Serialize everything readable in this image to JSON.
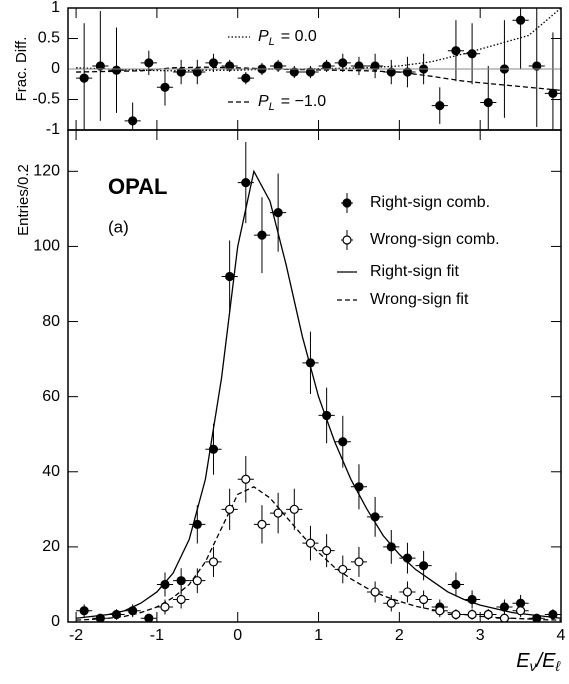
{
  "chart_data": [
    {
      "type": "errorbar",
      "ylabel": "Frac. Diff.",
      "ylim": [
        -1,
        1
      ],
      "yticks": [
        -1,
        -0.5,
        0,
        0.5,
        1
      ],
      "xlim": [
        -2.1,
        4
      ],
      "xticks": [
        -2,
        -1,
        0,
        1,
        2,
        3,
        4
      ],
      "color": "#000000",
      "x": [
        -1.9,
        -1.7,
        -1.5,
        -1.3,
        -1.1,
        -0.9,
        -0.7,
        -0.5,
        -0.3,
        -0.1,
        0.1,
        0.3,
        0.5,
        0.7,
        0.9,
        1.1,
        1.3,
        1.5,
        1.7,
        1.9,
        2.1,
        2.3,
        2.5,
        2.7,
        2.9,
        3.1,
        3.3,
        3.5,
        3.7,
        3.9
      ],
      "values": [
        -0.15,
        0.05,
        -0.02,
        -0.85,
        0.1,
        -0.3,
        -0.05,
        -0.05,
        0.1,
        0.05,
        -0.15,
        0.0,
        0.05,
        -0.05,
        -0.05,
        0.05,
        0.1,
        0.05,
        0.05,
        -0.05,
        -0.05,
        0.0,
        -0.6,
        0.3,
        0.25,
        -0.55,
        0.0,
        0.8,
        0.05,
        -0.4
      ],
      "errors": [
        0.9,
        0.9,
        0.7,
        0.3,
        0.2,
        0.3,
        0.2,
        0.2,
        0.15,
        0.1,
        0.1,
        0.1,
        0.1,
        0.1,
        0.1,
        0.1,
        0.15,
        0.15,
        0.2,
        0.2,
        0.25,
        0.25,
        0.3,
        0.5,
        0.5,
        0.6,
        0.8,
        0.8,
        1,
        1
      ],
      "curves": [
        {
          "symbol": "P",
          "sub": "L",
          "name": "=  0.0",
          "style": "dotted",
          "x": [
            -2,
            -1.6,
            -1.2,
            -0.8,
            -0.4,
            0,
            0.4,
            0.8,
            1.2,
            1.6,
            2.0,
            2.4,
            2.8,
            3.2,
            3.6,
            4.0
          ],
          "values": [
            0.02,
            0.0,
            -0.02,
            -0.03,
            -0.02,
            -0.02,
            0.0,
            0.0,
            0.01,
            0.02,
            0.05,
            0.12,
            0.25,
            0.4,
            0.55,
            1.0
          ]
        },
        {
          "symbol": "P",
          "sub": "L",
          "name": "= −1.0",
          "style": "dashed",
          "x": [
            -2,
            -1.6,
            -1.2,
            -0.8,
            -0.4,
            0,
            0.4,
            0.8,
            1.2,
            1.6,
            2.0,
            2.4,
            2.8,
            3.2,
            3.6,
            4.0
          ],
          "values": [
            -0.05,
            -0.04,
            -0.03,
            0.02,
            0.03,
            0.02,
            0.0,
            -0.01,
            -0.02,
            -0.03,
            -0.05,
            -0.12,
            -0.2,
            -0.25,
            -0.3,
            -0.35
          ]
        }
      ]
    },
    {
      "type": "errorbar",
      "title": "OPAL",
      "annotation": "(a)",
      "ylabel": "Entries/0.2",
      "ylim": [
        0,
        131
      ],
      "yticks": [
        0,
        20,
        40,
        60,
        80,
        100,
        120
      ],
      "xlim": [
        -2.1,
        4
      ],
      "xticks": [
        -2,
        -1,
        0,
        1,
        2,
        3,
        4
      ],
      "xlabel": [
        {
          "text": "E"
        },
        {
          "sub": "ν"
        },
        {
          "text": "/E"
        },
        {
          "sub": "ℓ"
        }
      ],
      "x": [
        -1.9,
        -1.7,
        -1.5,
        -1.3,
        -1.1,
        -0.9,
        -0.7,
        -0.5,
        -0.3,
        -0.1,
        0.1,
        0.3,
        0.5,
        0.7,
        0.9,
        1.1,
        1.3,
        1.5,
        1.7,
        1.9,
        2.1,
        2.3,
        2.5,
        2.7,
        2.9,
        3.1,
        3.3,
        3.5,
        3.7,
        3.9
      ],
      "series": [
        {
          "name": "Right-sign comb.",
          "marker": "filled",
          "color": "#000000",
          "values": [
            3,
            1,
            2,
            3,
            1,
            10,
            11,
            26,
            46,
            92,
            117,
            103,
            109,
            null,
            69,
            55,
            48,
            36,
            28,
            20,
            17,
            15,
            4,
            10,
            6,
            2,
            4,
            5,
            1,
            2
          ],
          "errors": [
            1.7,
            1,
            1.4,
            1.7,
            1,
            3.2,
            3.3,
            5.1,
            6.8,
            9.6,
            10.8,
            10.1,
            10.4,
            null,
            8.3,
            7.4,
            6.9,
            6,
            5.3,
            4.5,
            4.1,
            3.9,
            2,
            3.2,
            2.4,
            1.4,
            2,
            2.2,
            1,
            1.4
          ]
        },
        {
          "name": "Wrong-sign comb.",
          "marker": "open",
          "color": "#000000",
          "values": [
            null,
            null,
            null,
            null,
            null,
            4,
            6,
            11,
            16,
            30,
            38,
            26,
            29,
            30,
            21,
            19,
            14,
            16,
            8,
            5,
            8,
            6,
            3,
            2,
            2,
            2,
            1,
            3,
            null,
            null
          ],
          "errors": [
            null,
            null,
            null,
            null,
            null,
            2,
            2.4,
            3.3,
            4,
            5.5,
            6.2,
            5.1,
            5.4,
            5.5,
            4.6,
            4.4,
            3.7,
            4,
            2.8,
            2.2,
            2.8,
            2.4,
            1.7,
            1.4,
            1.4,
            1.4,
            1,
            1.7,
            null,
            null
          ]
        }
      ],
      "curves": [
        {
          "name": "Right-sign fit",
          "style": "solid",
          "x": [
            -2,
            -1.8,
            -1.6,
            -1.4,
            -1.2,
            -1.0,
            -0.8,
            -0.6,
            -0.4,
            -0.2,
            0,
            0.2,
            0.4,
            0.6,
            0.8,
            1.0,
            1.2,
            1.4,
            1.6,
            1.8,
            2.0,
            2.2,
            2.4,
            2.6,
            2.8,
            3.0,
            3.2,
            3.4,
            3.6,
            3.8,
            4.0
          ],
          "values": [
            1,
            1.5,
            2,
            3,
            5,
            8,
            13,
            22,
            38,
            65,
            100,
            120,
            112,
            95,
            76,
            60,
            48,
            38,
            30,
            23,
            18,
            14,
            11,
            8,
            6,
            4.5,
            3.5,
            2.5,
            2,
            1.5,
            1
          ]
        },
        {
          "name": "Wrong-sign fit",
          "style": "dashed",
          "x": [
            -2,
            -1.8,
            -1.6,
            -1.4,
            -1.2,
            -1.0,
            -0.8,
            -0.6,
            -0.4,
            -0.2,
            0,
            0.2,
            0.4,
            0.6,
            0.8,
            1.0,
            1.2,
            1.4,
            1.6,
            1.8,
            2.0,
            2.2,
            2.4,
            2.6,
            2.8,
            3.0,
            3.2,
            3.4,
            3.6,
            3.8,
            4.0
          ],
          "values": [
            0.5,
            0.7,
            1,
            1.5,
            2.5,
            4,
            6.5,
            10,
            16,
            25,
            34,
            36,
            33,
            28,
            23,
            18.5,
            14.5,
            11.5,
            9,
            7,
            5.5,
            4.2,
            3.3,
            2.5,
            2,
            1.5,
            1.2,
            1,
            0.8,
            0.6,
            0.5
          ]
        }
      ]
    }
  ]
}
